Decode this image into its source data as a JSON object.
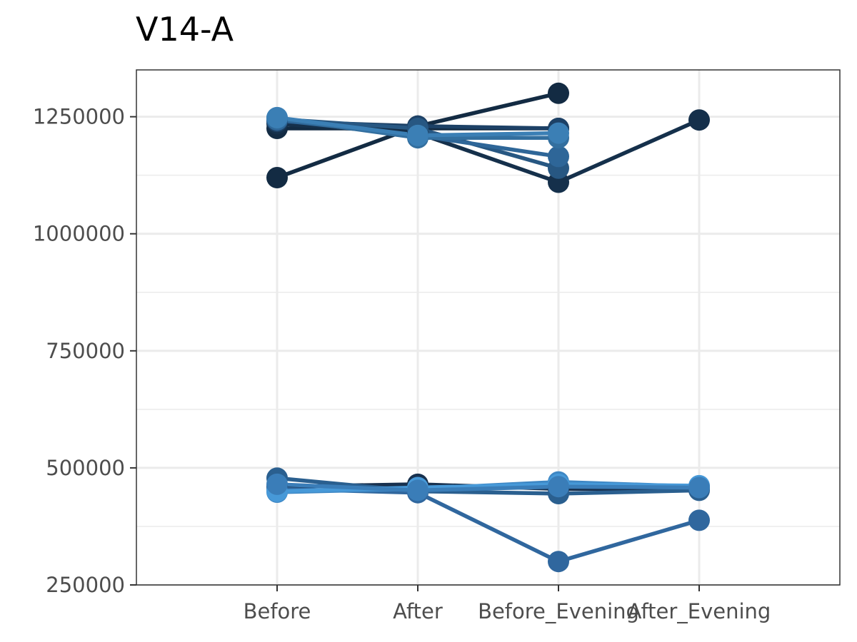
{
  "chart_data": {
    "type": "line",
    "title": "V14-A",
    "xlabel": "",
    "ylabel": "",
    "categories": [
      "Before",
      "After",
      "Before_Evening",
      "After_Evening"
    ],
    "ylim": [
      250000,
      1350000
    ],
    "yticks": [
      250000,
      500000,
      750000,
      1000000,
      1250000
    ],
    "y_tick_labels": [
      "250000",
      "500000",
      "750000",
      "1000000",
      "1250000"
    ],
    "grid": true,
    "legend": "none",
    "series": [
      {
        "color": "#132b43",
        "values": [
          1120000,
          1230000,
          1300000,
          null
        ]
      },
      {
        "color": "#132b43",
        "values": [
          1225000,
          1225000,
          1225000,
          null
        ]
      },
      {
        "color": "#15304b",
        "values": [
          1235000,
          1215000,
          1110000,
          1243000
        ]
      },
      {
        "color": "#1d4166",
        "values": [
          1240000,
          1230000,
          1225000,
          null
        ]
      },
      {
        "color": "#275782",
        "values": [
          1245000,
          1225000,
          1140000,
          null
        ]
      },
      {
        "color": "#2e6698",
        "values": [
          1243000,
          1210000,
          1165000,
          null
        ]
      },
      {
        "color": "#336f9f",
        "values": [
          1247000,
          1205000,
          1205000,
          null
        ]
      },
      {
        "color": "#3b7fb5",
        "values": [
          1248000,
          1210000,
          1215000,
          null
        ]
      },
      {
        "color": "#18314f",
        "values": [
          460000,
          465000,
          455000,
          455000
        ]
      },
      {
        "color": "#2a5f8f",
        "values": [
          478000,
          450000,
          445000,
          452000
        ]
      },
      {
        "color": "#30679e",
        "values": [
          455000,
          447000,
          300000,
          388000
        ]
      },
      {
        "color": "#3e87c4",
        "values": [
          448000,
          455000,
          470000,
          460000
        ]
      },
      {
        "color": "#4799d8",
        "values": [
          450000,
          458000,
          465000,
          462000
        ]
      },
      {
        "color": "#3a7db8",
        "values": [
          465000,
          452000,
          460000,
          458000
        ]
      }
    ]
  }
}
